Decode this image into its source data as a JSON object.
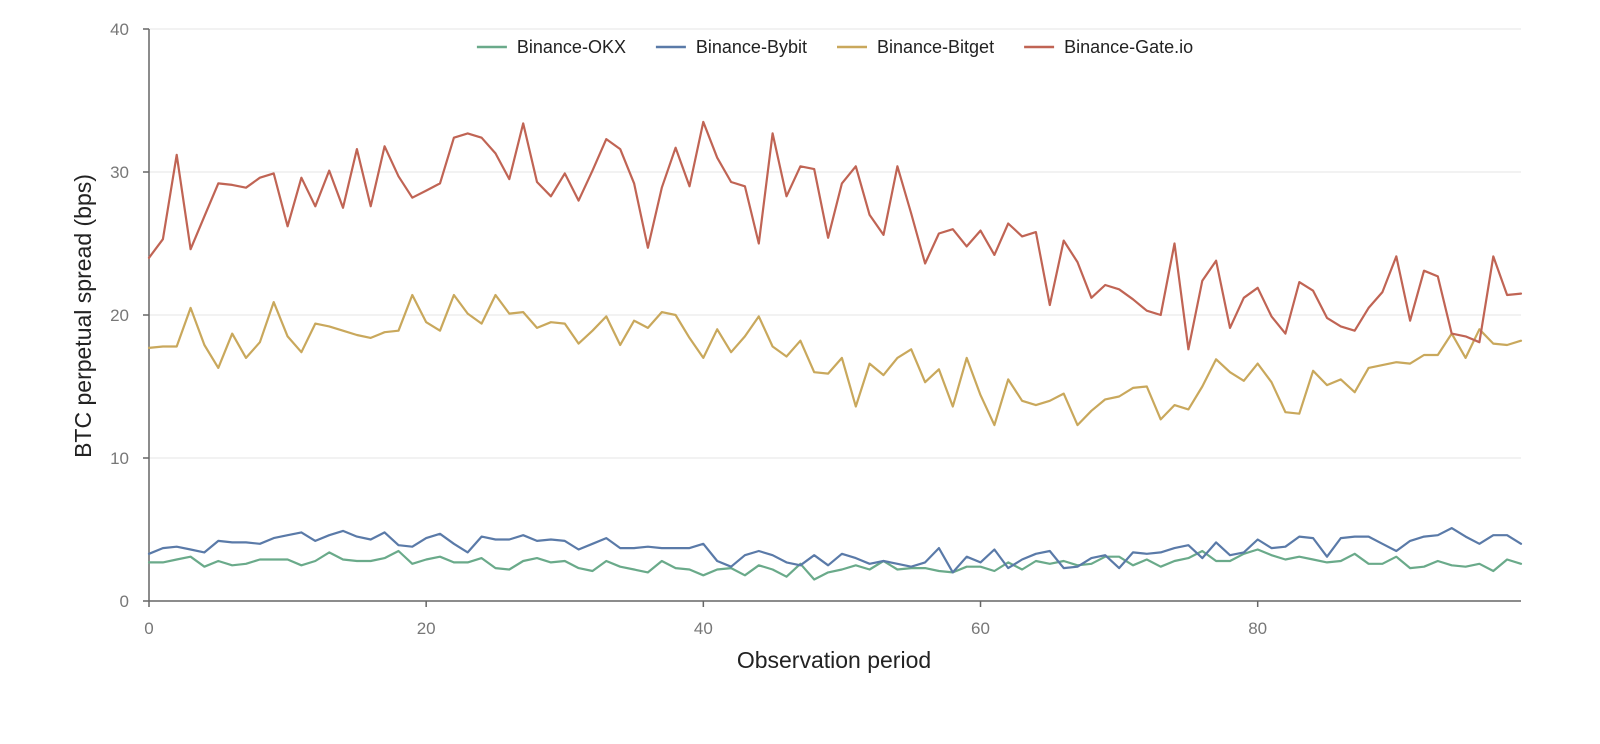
{
  "chart_data": {
    "type": "line",
    "title": "",
    "xlabel": "Observation period",
    "ylabel": "BTC perpetual spread (bps)",
    "xlim": [
      0,
      99
    ],
    "ylim": [
      0,
      40
    ],
    "xticks": [
      0,
      20,
      40,
      60,
      80
    ],
    "yticks": [
      0,
      10,
      20,
      30,
      40
    ],
    "grid": "horizontal",
    "legend": "top-center",
    "series": [
      {
        "name": "Binance-OKX",
        "color": "#6aaa8a",
        "values": [
          2.7,
          2.7,
          2.9,
          3.1,
          2.4,
          2.8,
          2.5,
          2.6,
          2.9,
          2.9,
          2.9,
          2.5,
          2.8,
          3.4,
          2.9,
          2.8,
          2.8,
          3.0,
          3.5,
          2.6,
          2.9,
          3.1,
          2.7,
          2.7,
          3.0,
          2.3,
          2.2,
          2.8,
          3.0,
          2.7,
          2.8,
          2.3,
          2.1,
          2.8,
          2.4,
          2.2,
          2.0,
          2.8,
          2.3,
          2.2,
          1.8,
          2.2,
          2.3,
          1.8,
          2.5,
          2.2,
          1.7,
          2.6,
          1.5,
          2.0,
          2.2,
          2.5,
          2.2,
          2.8,
          2.2,
          2.3,
          2.3,
          2.1,
          2.0,
          2.4,
          2.4,
          2.1,
          2.7,
          2.2,
          2.8,
          2.6,
          2.8,
          2.5,
          2.6,
          3.1,
          3.1,
          2.5,
          2.9,
          2.4,
          2.8,
          3.0,
          3.5,
          2.8,
          2.8,
          3.3,
          3.6,
          3.2,
          2.9,
          3.1,
          2.9,
          2.7,
          2.8,
          3.3,
          2.6,
          2.6,
          3.1,
          2.3,
          2.4,
          2.8,
          2.5,
          2.4,
          2.6,
          2.1,
          2.9,
          2.6
        ]
      },
      {
        "name": "Binance-Bybit",
        "color": "#5a7aa8",
        "values": [
          3.3,
          3.7,
          3.8,
          3.6,
          3.4,
          4.2,
          4.1,
          4.1,
          4.0,
          4.4,
          4.6,
          4.8,
          4.2,
          4.6,
          4.9,
          4.5,
          4.3,
          4.8,
          3.9,
          3.8,
          4.4,
          4.7,
          4.0,
          3.4,
          4.5,
          4.3,
          4.3,
          4.6,
          4.2,
          4.3,
          4.2,
          3.6,
          4.0,
          4.4,
          3.7,
          3.7,
          3.8,
          3.7,
          3.7,
          3.7,
          4.0,
          2.8,
          2.4,
          3.2,
          3.5,
          3.2,
          2.7,
          2.5,
          3.2,
          2.5,
          3.3,
          3.0,
          2.6,
          2.8,
          2.6,
          2.4,
          2.7,
          3.7,
          2.0,
          3.1,
          2.7,
          3.6,
          2.3,
          2.9,
          3.3,
          3.5,
          2.3,
          2.4,
          3.0,
          3.2,
          2.3,
          3.4,
          3.3,
          3.4,
          3.7,
          3.9,
          3.0,
          4.1,
          3.2,
          3.4,
          4.3,
          3.7,
          3.8,
          4.5,
          4.4,
          3.1,
          4.4,
          4.5,
          4.5,
          4.0,
          3.5,
          4.2,
          4.5,
          4.6,
          5.1,
          4.5,
          4.0,
          4.6,
          4.6,
          4.0
        ]
      },
      {
        "name": "Binance-Bitget",
        "color": "#c9a85c",
        "values": [
          17.7,
          17.8,
          17.8,
          20.5,
          17.9,
          16.3,
          18.7,
          17.0,
          18.1,
          20.9,
          18.5,
          17.4,
          19.4,
          19.2,
          18.9,
          18.6,
          18.4,
          18.8,
          18.9,
          21.4,
          19.5,
          18.9,
          21.4,
          20.1,
          19.4,
          21.4,
          20.1,
          20.2,
          19.1,
          19.5,
          19.4,
          18.0,
          18.9,
          19.9,
          17.9,
          19.6,
          19.1,
          20.2,
          20.0,
          18.4,
          17.0,
          19.0,
          17.4,
          18.5,
          19.9,
          17.8,
          17.1,
          18.2,
          16.0,
          15.9,
          17.0,
          13.6,
          16.6,
          15.8,
          17.0,
          17.6,
          15.3,
          16.2,
          13.6,
          17.0,
          14.4,
          12.3,
          15.5,
          14.0,
          13.7,
          14.0,
          14.5,
          12.3,
          13.3,
          14.1,
          14.3,
          14.9,
          15.0,
          12.7,
          13.7,
          13.4,
          15.0,
          16.9,
          16.0,
          15.4,
          16.6,
          15.3,
          13.2,
          13.1,
          16.1,
          15.1,
          15.5,
          14.6,
          16.3,
          16.5,
          16.7,
          16.6,
          17.2,
          17.2,
          18.7,
          17.0,
          19.0,
          18.0,
          17.9,
          18.2
        ]
      },
      {
        "name": "Binance-Gate.io",
        "color": "#c06454",
        "values": [
          24.0,
          25.3,
          31.2,
          24.6,
          26.9,
          29.2,
          29.1,
          28.9,
          29.6,
          29.9,
          26.2,
          29.6,
          27.6,
          30.1,
          27.5,
          31.6,
          27.6,
          31.8,
          29.7,
          28.2,
          28.7,
          29.2,
          32.4,
          32.7,
          32.4,
          31.3,
          29.5,
          33.4,
          29.3,
          28.3,
          29.9,
          28.0,
          30.1,
          32.3,
          31.6,
          29.2,
          24.7,
          28.9,
          31.7,
          29.0,
          33.5,
          31.0,
          29.3,
          29.0,
          25.0,
          32.7,
          28.3,
          30.4,
          30.2,
          25.4,
          29.2,
          30.4,
          27.0,
          25.6,
          30.4,
          27.1,
          23.6,
          25.7,
          26.0,
          24.8,
          25.9,
          24.2,
          26.4,
          25.5,
          25.8,
          20.7,
          25.2,
          23.7,
          21.2,
          22.1,
          21.8,
          21.1,
          20.3,
          20.0,
          25.0,
          17.6,
          22.4,
          23.8,
          19.1,
          21.2,
          21.9,
          19.9,
          18.7,
          22.3,
          21.7,
          19.8,
          19.2,
          18.9,
          20.5,
          21.6,
          24.1,
          19.6,
          23.1,
          22.7,
          18.7,
          18.5,
          18.1,
          24.1,
          21.4,
          21.5
        ]
      }
    ]
  }
}
